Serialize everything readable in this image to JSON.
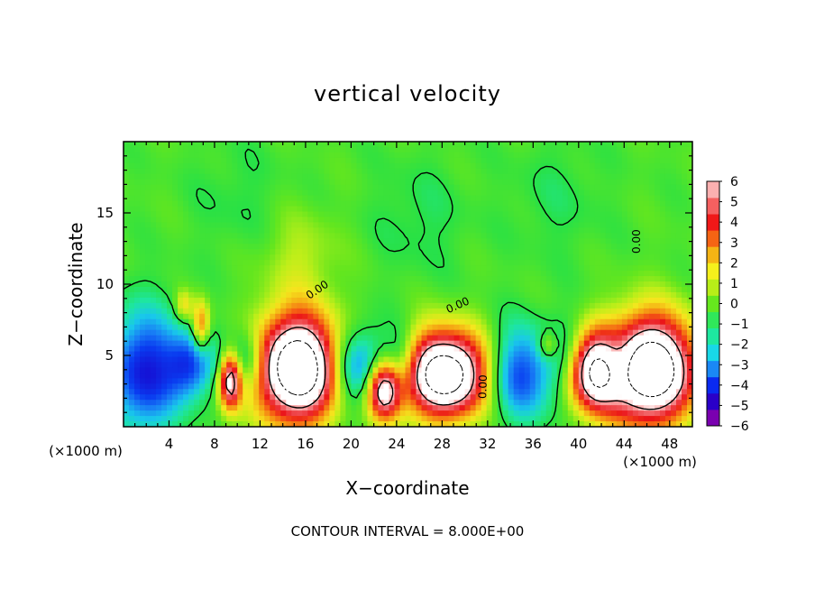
{
  "chart_data": {
    "type": "heatmap",
    "title": "vertical velocity",
    "xlabel": "X−coordinate",
    "ylabel": "Z−coordinate",
    "x_units_left": "(×1000 m)",
    "x_units_right": "(×1000 m)",
    "footer": "CONTOUR INTERVAL = 8.000E+00",
    "xlim": [
      0,
      50
    ],
    "ylim": [
      0,
      20
    ],
    "x_ticks": [
      4,
      8,
      12,
      16,
      20,
      24,
      28,
      32,
      36,
      40,
      44,
      48
    ],
    "y_ticks": [
      5,
      10,
      15
    ],
    "colorbar": {
      "ticks": [
        "6",
        "5",
        "4",
        "3",
        "2",
        "1",
        "0",
        "−1",
        "−2",
        "−3",
        "−4",
        "−5",
        "−6"
      ],
      "colors": [
        "#7a00b0",
        "#2a00c8",
        "#0a2af0",
        "#1a88f5",
        "#18d8e8",
        "#1ee8a0",
        "#30e85a",
        "#66e81e",
        "#b8ee18",
        "#f5f01c",
        "#f5b414",
        "#f56414",
        "#f01818",
        "#f56060",
        "#fbb0b0"
      ]
    },
    "contour_labels": [
      {
        "text": "0.00",
        "x": 17.2,
        "z": 9.4,
        "rotate": -34
      },
      {
        "text": "0.00",
        "x": 29.5,
        "z": 8.3,
        "rotate": -24
      },
      {
        "text": "0.00",
        "x": 31.9,
        "z": 2.8,
        "rotate": -88
      },
      {
        "text": "0.00",
        "x": 45.4,
        "z": 13.0,
        "rotate": -90
      }
    ],
    "features": [
      {
        "kind": "updraft",
        "x": 15.3,
        "z": 4.1,
        "rx": 2.7,
        "rz": 2.7,
        "peak": 14
      },
      {
        "kind": "updraft",
        "x": 28.3,
        "z": 3.7,
        "rx": 3.0,
        "rz": 2.2,
        "peak": 13
      },
      {
        "kind": "updraft",
        "x": 46.3,
        "z": 4.0,
        "rx": 2.8,
        "rz": 2.7,
        "peak": 14
      },
      {
        "kind": "updraft",
        "x": 41.2,
        "z": 3.9,
        "rx": 2.0,
        "rz": 2.0,
        "peak": 12
      },
      {
        "kind": "updraft",
        "x": 9.4,
        "z": 3.3,
        "rx": 0.7,
        "rz": 1.5,
        "peak": 10
      },
      {
        "kind": "updraft",
        "x": 22.9,
        "z": 2.6,
        "rx": 1.1,
        "rz": 1.5,
        "peak": 10
      },
      {
        "kind": "updraft",
        "x": 6.8,
        "z": 7.1,
        "rx": 0.5,
        "rz": 1.3,
        "peak": 5
      },
      {
        "kind": "updraft",
        "x": 5.3,
        "z": 8.5,
        "rx": 0.5,
        "rz": 0.8,
        "peak": 3
      },
      {
        "kind": "updraft",
        "x": 37.3,
        "z": 5.7,
        "rx": 0.6,
        "rz": 0.7,
        "peak": 3
      },
      {
        "kind": "updraft",
        "x": 15.5,
        "z": 11.8,
        "rx": 2.5,
        "rz": 2.5,
        "peak": 1.4
      },
      {
        "kind": "downdraft",
        "x": 1.8,
        "z": 3.9,
        "rx": 2.4,
        "rz": 3.2,
        "peak": -5.5
      },
      {
        "kind": "downdraft",
        "x": 5.9,
        "z": 4.3,
        "rx": 1.5,
        "rz": 1.7,
        "peak": -4.2
      },
      {
        "kind": "downdraft",
        "x": 10.6,
        "z": 4.7,
        "rx": 1.5,
        "rz": 1.6,
        "peak": -3.8
      },
      {
        "kind": "downdraft",
        "x": 20.7,
        "z": 4.1,
        "rx": 2.0,
        "rz": 2.0,
        "peak": -5.0
      },
      {
        "kind": "downdraft",
        "x": 24.4,
        "z": 4.4,
        "rx": 1.2,
        "rz": 1.8,
        "peak": -3.8
      },
      {
        "kind": "downdraft",
        "x": 34.5,
        "z": 3.7,
        "rx": 2.3,
        "rz": 2.4,
        "peak": -5.2
      },
      {
        "kind": "downdraft",
        "x": 39.3,
        "z": 4.3,
        "rx": 1.6,
        "rz": 2.1,
        "peak": -4.6
      },
      {
        "kind": "downdraft",
        "x": 43.4,
        "z": 4.4,
        "rx": 1.3,
        "rz": 1.7,
        "peak": -4.2
      },
      {
        "kind": "downdraft",
        "x": 26.0,
        "z": 14.6,
        "rx": 3.0,
        "rz": 3.0,
        "peak": -0.8
      },
      {
        "kind": "downdraft",
        "x": 10.0,
        "z": 16.0,
        "rx": 3.0,
        "rz": 3.0,
        "peak": -0.6
      },
      {
        "kind": "downdraft",
        "x": 38.0,
        "z": 16.0,
        "rx": 3.0,
        "rz": 3.0,
        "peak": -0.7
      }
    ]
  }
}
